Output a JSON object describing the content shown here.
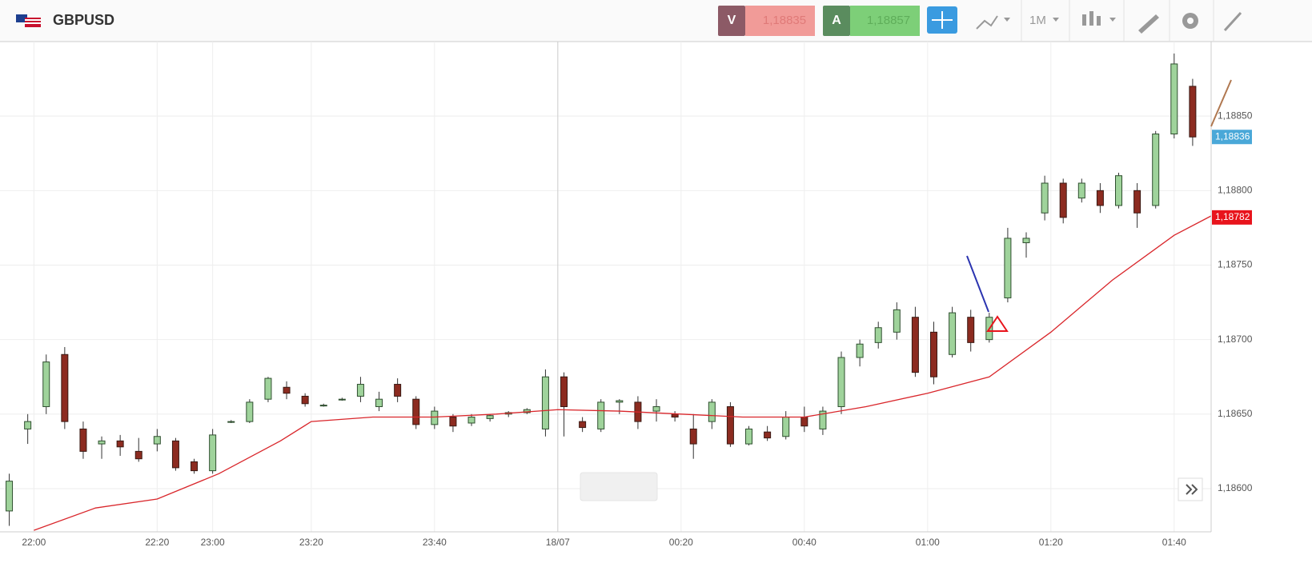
{
  "toolbar": {
    "symbol": "GBPUSD",
    "sell": {
      "label": "V",
      "price": "1,18835"
    },
    "buy": {
      "label": "A",
      "price": "1,18857"
    },
    "timeframe": "1M"
  },
  "chart_data": {
    "type": "candlestick",
    "x": [
      -4,
      -1,
      2,
      5,
      8,
      11,
      14,
      17,
      20,
      23,
      26,
      29,
      32,
      35,
      38,
      41,
      44,
      47,
      50,
      53,
      56,
      59,
      62,
      65,
      68,
      71,
      74,
      77,
      80,
      83,
      86,
      89,
      92,
      95,
      98,
      101,
      104,
      107,
      110,
      113,
      116,
      119,
      122,
      125,
      128,
      131,
      134,
      137,
      140,
      143,
      146,
      149,
      152,
      155,
      158,
      161,
      164,
      167,
      170,
      173,
      176,
      179,
      182,
      185,
      188
    ],
    "open": [
      1.18585,
      1.1864,
      1.18655,
      1.1869,
      1.1864,
      1.1863,
      1.18632,
      1.18625,
      1.1863,
      1.18632,
      1.18618,
      1.18612,
      1.18645,
      1.18645,
      1.1866,
      1.18668,
      1.18662,
      1.18656,
      1.1866,
      1.18662,
      1.18655,
      1.1867,
      1.1866,
      1.18643,
      1.18648,
      1.18644,
      1.18647,
      1.1865,
      1.18651,
      1.1864,
      1.18675,
      1.18645,
      1.1864,
      1.18658,
      1.18658,
      1.18652,
      1.1865,
      1.1864,
      1.18645,
      1.18655,
      1.1863,
      1.18638,
      1.18635,
      1.18648,
      1.1864,
      1.18655,
      1.18688,
      1.18698,
      1.18705,
      1.18715,
      1.18705,
      1.1869,
      1.18715,
      1.187,
      1.18728,
      1.18765,
      1.18785,
      1.18805,
      1.18795,
      1.188,
      1.1879,
      1.188,
      1.1879,
      1.18838,
      1.1887
    ],
    "high": [
      1.1861,
      1.1865,
      1.1869,
      1.18695,
      1.18645,
      1.18635,
      1.18636,
      1.18634,
      1.1864,
      1.18634,
      1.1862,
      1.1864,
      1.18646,
      1.1866,
      1.18675,
      1.18672,
      1.18664,
      1.18657,
      1.18661,
      1.18675,
      1.18665,
      1.18674,
      1.18662,
      1.18655,
      1.1865,
      1.1865,
      1.1865,
      1.18652,
      1.18654,
      1.1868,
      1.18678,
      1.18648,
      1.1866,
      1.1866,
      1.18662,
      1.1866,
      1.18652,
      1.1865,
      1.1866,
      1.18658,
      1.18642,
      1.18642,
      1.18652,
      1.18655,
      1.18655,
      1.18692,
      1.187,
      1.18712,
      1.18725,
      1.18722,
      1.18712,
      1.18722,
      1.1872,
      1.18718,
      1.18775,
      1.18772,
      1.1881,
      1.18808,
      1.18808,
      1.18805,
      1.18812,
      1.18805,
      1.1884,
      1.18892,
      1.18875
    ],
    "low": [
      1.18575,
      1.1863,
      1.1865,
      1.1864,
      1.1862,
      1.1862,
      1.18622,
      1.18618,
      1.18625,
      1.18612,
      1.1861,
      1.1861,
      1.18644,
      1.18644,
      1.18658,
      1.1866,
      1.18655,
      1.18655,
      1.18659,
      1.18658,
      1.18652,
      1.18658,
      1.1864,
      1.1864,
      1.18638,
      1.18642,
      1.18645,
      1.18648,
      1.1865,
      1.18635,
      1.18635,
      1.18638,
      1.18638,
      1.1865,
      1.1864,
      1.18645,
      1.18645,
      1.1862,
      1.1864,
      1.18628,
      1.18629,
      1.18632,
      1.18633,
      1.18638,
      1.18636,
      1.1865,
      1.18682,
      1.18694,
      1.187,
      1.18675,
      1.1867,
      1.18688,
      1.18692,
      1.18698,
      1.18725,
      1.18755,
      1.1878,
      1.18778,
      1.18792,
      1.18785,
      1.18788,
      1.18775,
      1.18788,
      1.18835,
      1.1883
    ],
    "close": [
      1.18605,
      1.18645,
      1.18685,
      1.18645,
      1.18625,
      1.18632,
      1.18628,
      1.1862,
      1.18635,
      1.18614,
      1.18612,
      1.18636,
      1.18645,
      1.18658,
      1.18674,
      1.18664,
      1.18657,
      1.18656,
      1.1866,
      1.1867,
      1.1866,
      1.18662,
      1.18643,
      1.18652,
      1.18642,
      1.18648,
      1.18649,
      1.18651,
      1.18653,
      1.18675,
      1.18655,
      1.18641,
      1.18658,
      1.18659,
      1.18645,
      1.18655,
      1.18648,
      1.1863,
      1.18658,
      1.1863,
      1.1864,
      1.18634,
      1.18648,
      1.18642,
      1.18652,
      1.18688,
      1.18697,
      1.18708,
      1.1872,
      1.18678,
      1.18675,
      1.18718,
      1.18698,
      1.18715,
      1.18768,
      1.18768,
      1.18805,
      1.18782,
      1.18805,
      1.1879,
      1.1881,
      1.18785,
      1.18838,
      1.18885,
      1.18836
    ],
    "up_color": "#9fd39b",
    "down_color": "#8c2b20",
    "ma": {
      "color": "#d9262b",
      "x": [
        0,
        10,
        20,
        30,
        40,
        45,
        55,
        65,
        75,
        85,
        95,
        105,
        115,
        125,
        135,
        145,
        155,
        165,
        175,
        185,
        191
      ],
      "values": [
        1.18572,
        1.18587,
        1.18593,
        1.1861,
        1.18632,
        1.18645,
        1.18648,
        1.18648,
        1.1865,
        1.18653,
        1.18652,
        1.1865,
        1.18648,
        1.18648,
        1.18655,
        1.18664,
        1.18675,
        1.18705,
        1.1874,
        1.1877,
        1.18783
      ]
    },
    "xlim": [
      -5.5,
      191
    ],
    "ylim": [
      1.18571,
      1.189
    ],
    "xticks": [
      {
        "value": 0,
        "label": "22:00"
      },
      {
        "value": 20,
        "label": "22:20"
      },
      {
        "value": 29,
        "label": "23:00"
      },
      {
        "value": 45,
        "label": "23:20"
      },
      {
        "value": 65,
        "label": "23:40"
      },
      {
        "value": 85,
        "label": "18/07"
      },
      {
        "value": 105,
        "label": "00:20"
      },
      {
        "value": 125,
        "label": "00:40"
      },
      {
        "value": 145,
        "label": "01:00"
      },
      {
        "value": 165,
        "label": "01:20"
      },
      {
        "value": 185,
        "label": "01:40"
      }
    ],
    "yticks": [
      {
        "value": 1.186,
        "label": "1,18600"
      },
      {
        "value": 1.1865,
        "label": "1,18650"
      },
      {
        "value": 1.187,
        "label": "1,18700"
      },
      {
        "value": 1.1875,
        "label": "1,18750"
      },
      {
        "value": 1.188,
        "label": "1,18800"
      },
      {
        "value": 1.1885,
        "label": "1,18850"
      }
    ],
    "price_tags": [
      {
        "value": 1.18836,
        "label": "1,18836",
        "color": "#4aa8d8"
      },
      {
        "value": 1.18782,
        "label": "1,18782",
        "color": "#e8141c"
      }
    ],
    "grid": true
  }
}
